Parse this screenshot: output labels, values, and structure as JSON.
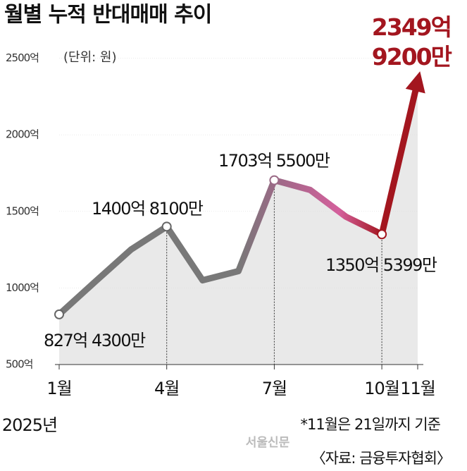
{
  "chart_data": {
    "type": "line",
    "title": "월별 누적 반대매매 추이",
    "subtitle": "(단위: 원)",
    "categories": [
      "1월",
      null,
      null,
      "4월",
      null,
      null,
      "7월",
      null,
      null,
      "10월",
      "11월"
    ],
    "year_label": "2025년",
    "values": [
      827.43,
      1040,
      1250,
      1400.81,
      1050,
      1110,
      1703.55,
      1640,
      1465,
      1350.5399,
      2349.92
    ],
    "value_labels": [
      "827억 4300만",
      null,
      null,
      "1400억 8100만",
      null,
      null,
      "1703억 5500만",
      null,
      null,
      "1350억 5399만",
      "2349억 9200만"
    ],
    "colors": [
      "#787878",
      "#9a6a86",
      "#d4609c",
      "#a3161f"
    ],
    "ylim": [
      500,
      2650
    ],
    "yticks": [
      {
        "value": 500,
        "label": "500억"
      },
      {
        "value": 1000,
        "label": "1000억"
      },
      {
        "value": 1500,
        "label": "1500억"
      },
      {
        "value": 2000,
        "label": "2000억"
      },
      {
        "value": 2500,
        "label": "2500억"
      }
    ],
    "note": "*11월은 21일까지 기준",
    "source": "〈자료: 금융투자협회〉",
    "watermark": "서울신문"
  }
}
